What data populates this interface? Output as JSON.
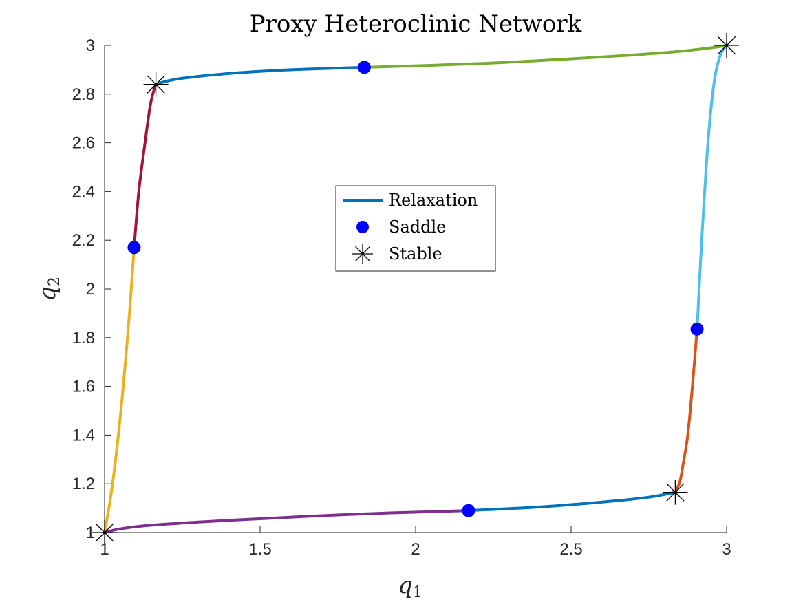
{
  "chart_data": {
    "type": "line",
    "title": "Proxy Heteroclinic Network",
    "xlabel": {
      "base": "q",
      "sub": "1"
    },
    "ylabel": {
      "base": "q",
      "sub": "2"
    },
    "xlim": [
      1,
      3
    ],
    "ylim": [
      1,
      3
    ],
    "xticks": [
      "1",
      "1.5",
      "2",
      "2.5",
      "3"
    ],
    "yticks": [
      "1",
      "1.2",
      "1.4",
      "1.6",
      "1.8",
      "2",
      "2.2",
      "2.4",
      "2.6",
      "2.8",
      "3"
    ],
    "grid": false,
    "legend_position": "center",
    "legend": [
      {
        "label": "Relaxation",
        "marker": "line",
        "color": "#0072bd"
      },
      {
        "label": "Saddle",
        "marker": "circle",
        "color": "#0000ff"
      },
      {
        "label": "Stable",
        "marker": "asterisk",
        "color": "#000000"
      }
    ],
    "series": [
      {
        "color": "#0072bd",
        "points": [
          [
            2.17,
            1.09
          ],
          [
            2.4,
            1.105
          ],
          [
            2.6,
            1.125
          ],
          [
            2.75,
            1.145
          ],
          [
            2.835,
            1.165
          ]
        ]
      },
      {
        "color": "#7e2f8e",
        "points": [
          [
            2.17,
            1.09
          ],
          [
            1.8,
            1.075
          ],
          [
            1.4,
            1.05
          ],
          [
            1.15,
            1.03
          ],
          [
            1.05,
            1.015
          ],
          [
            1.0,
            1.0
          ]
        ]
      },
      {
        "color": "#d95319",
        "points": [
          [
            2.905,
            1.835
          ],
          [
            2.89,
            1.6
          ],
          [
            2.875,
            1.4
          ],
          [
            2.86,
            1.28
          ],
          [
            2.85,
            1.21
          ],
          [
            2.835,
            1.165
          ]
        ]
      },
      {
        "color": "#4dbeee",
        "points": [
          [
            2.905,
            1.835
          ],
          [
            2.92,
            2.2
          ],
          [
            2.94,
            2.6
          ],
          [
            2.96,
            2.85
          ],
          [
            2.98,
            2.96
          ],
          [
            3.0,
            3.0
          ]
        ]
      },
      {
        "color": "#0072bd",
        "points": [
          [
            1.835,
            2.91
          ],
          [
            1.6,
            2.9
          ],
          [
            1.4,
            2.885
          ],
          [
            1.25,
            2.865
          ],
          [
            1.19,
            2.85
          ],
          [
            1.165,
            2.84
          ]
        ]
      },
      {
        "color": "#77ac30",
        "points": [
          [
            1.835,
            2.91
          ],
          [
            2.2,
            2.925
          ],
          [
            2.5,
            2.945
          ],
          [
            2.8,
            2.97
          ],
          [
            2.95,
            2.99
          ],
          [
            3.0,
            3.0
          ]
        ]
      },
      {
        "color": "#a2142f",
        "points": [
          [
            1.095,
            2.17
          ],
          [
            1.11,
            2.4
          ],
          [
            1.13,
            2.6
          ],
          [
            1.145,
            2.74
          ],
          [
            1.155,
            2.8
          ],
          [
            1.165,
            2.84
          ]
        ]
      },
      {
        "color": "#edb120",
        "points": [
          [
            1.095,
            2.17
          ],
          [
            1.08,
            1.9
          ],
          [
            1.06,
            1.6
          ],
          [
            1.04,
            1.35
          ],
          [
            1.02,
            1.15
          ],
          [
            1.0,
            1.0
          ]
        ]
      }
    ],
    "saddles": [
      [
        1.835,
        2.91
      ],
      [
        1.095,
        2.17
      ],
      [
        2.905,
        1.835
      ],
      [
        2.17,
        1.09
      ]
    ],
    "stables": [
      [
        1.0,
        1.0
      ],
      [
        1.165,
        2.84
      ],
      [
        3.0,
        3.0
      ],
      [
        2.835,
        1.165
      ]
    ]
  }
}
